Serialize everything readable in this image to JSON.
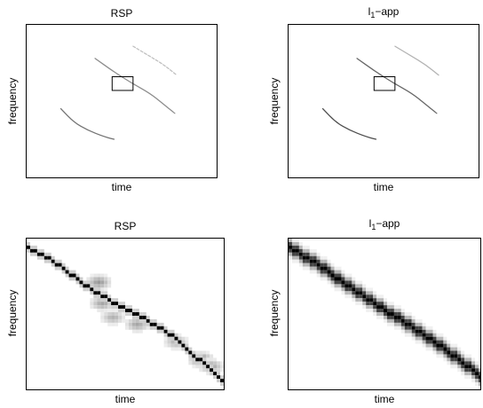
{
  "chart_data": [
    {
      "type": "heatmap",
      "title": "RSP",
      "xlabel": "time",
      "ylabel": "frequency",
      "grid": false,
      "legend": "none",
      "colormap": "gray (white = 0, black = 1)",
      "ridges": [
        {
          "t": [
            0.18,
            0.25,
            0.32,
            0.4,
            0.46
          ],
          "f": [
            0.45,
            0.36,
            0.31,
            0.27,
            0.25
          ],
          "intensity": 0.55
        },
        {
          "t": [
            0.36,
            0.45,
            0.55,
            0.65,
            0.72,
            0.78
          ],
          "f": [
            0.78,
            0.7,
            0.62,
            0.55,
            0.48,
            0.42
          ],
          "intensity": 0.45
        },
        {
          "t": [
            0.56,
            0.64,
            0.72,
            0.79
          ],
          "f": [
            0.86,
            0.8,
            0.74,
            0.67
          ],
          "intensity": 0.25
        }
      ],
      "zoom_box": {
        "t": [
          0.45,
          0.56
        ],
        "f": [
          0.57,
          0.66
        ]
      }
    },
    {
      "type": "heatmap",
      "title": "l1-app",
      "title_main": "l",
      "title_sub": "1",
      "title_tail": "−app",
      "xlabel": "time",
      "ylabel": "frequency",
      "grid": false,
      "legend": "none",
      "colormap": "gray (white = 0, black = 1)",
      "ridges": [
        {
          "t": [
            0.18,
            0.25,
            0.32,
            0.4,
            0.46
          ],
          "f": [
            0.45,
            0.36,
            0.31,
            0.27,
            0.25
          ],
          "intensity": 0.7
        },
        {
          "t": [
            0.36,
            0.45,
            0.55,
            0.65,
            0.72,
            0.78
          ],
          "f": [
            0.78,
            0.7,
            0.62,
            0.55,
            0.48,
            0.42
          ],
          "intensity": 0.6
        },
        {
          "t": [
            0.56,
            0.64,
            0.72,
            0.79
          ],
          "f": [
            0.86,
            0.8,
            0.74,
            0.67
          ],
          "intensity": 0.3
        }
      ],
      "zoom_box": {
        "t": [
          0.45,
          0.56
        ],
        "f": [
          0.57,
          0.66
        ]
      }
    },
    {
      "type": "heatmap",
      "title": "RSP",
      "xlabel": "time",
      "ylabel": "frequency",
      "grid": false,
      "legend": "none",
      "colormap": "gray (white = 0, black = 1)",
      "ridge": {
        "t": [
          0.0,
          0.15,
          0.3,
          0.45,
          0.6,
          0.75,
          0.9,
          1.0
        ],
        "f": [
          0.95,
          0.85,
          0.7,
          0.58,
          0.48,
          0.36,
          0.18,
          0.07
        ],
        "intensity": 1.0
      },
      "smear": [
        {
          "t": 0.35,
          "f": 0.73,
          "intensity": 0.4
        },
        {
          "t": 0.38,
          "f": 0.57,
          "intensity": 0.35
        },
        {
          "t": 0.43,
          "f": 0.5,
          "intensity": 0.3
        },
        {
          "t": 0.55,
          "f": 0.44,
          "intensity": 0.35
        },
        {
          "t": 0.75,
          "f": 0.33,
          "intensity": 0.3
        },
        {
          "t": 0.87,
          "f": 0.22,
          "intensity": 0.45
        },
        {
          "t": 0.92,
          "f": 0.16,
          "intensity": 0.35
        }
      ]
    },
    {
      "type": "heatmap",
      "title": "l1-app",
      "title_main": "l",
      "title_sub": "1",
      "title_tail": "−app",
      "xlabel": "time",
      "ylabel": "frequency",
      "grid": false,
      "legend": "none",
      "colormap": "gray (white = 0, black = 1)",
      "ridge": {
        "t": [
          0.0,
          0.15,
          0.3,
          0.45,
          0.6,
          0.75,
          0.9,
          1.0
        ],
        "f": [
          0.96,
          0.84,
          0.71,
          0.58,
          0.46,
          0.34,
          0.2,
          0.1
        ],
        "intensity": 1.0
      }
    }
  ]
}
